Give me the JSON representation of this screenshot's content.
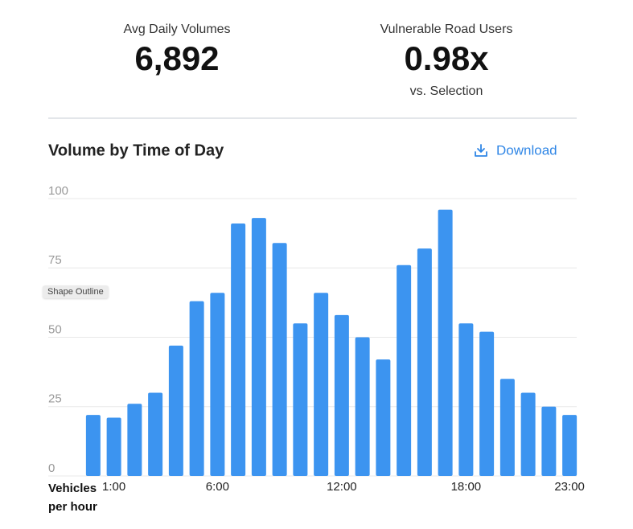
{
  "stats": [
    {
      "label": "Avg Daily Volumes",
      "value": "6,892"
    },
    {
      "label": "Vulnerable Road Users",
      "value": "0.98x",
      "sub": "vs. Selection"
    }
  ],
  "tooltip": "Shape Outline",
  "chart_data": {
    "type": "bar",
    "title": "Volume by Time of Day",
    "action": "Download",
    "x_label": "Vehicles per hour",
    "categories": [
      null,
      "1:00",
      null,
      null,
      null,
      null,
      "6:00",
      null,
      null,
      null,
      null,
      null,
      "12:00",
      null,
      null,
      null,
      null,
      null,
      "18:00",
      null,
      null,
      null,
      null,
      "23:00"
    ],
    "values": [
      22,
      21,
      26,
      30,
      47,
      63,
      66,
      91,
      93,
      84,
      55,
      66,
      58,
      50,
      42,
      76,
      82,
      96,
      55,
      52,
      35,
      30,
      25,
      22
    ],
    "color": "#3c94f0",
    "ylim": [
      0,
      100
    ],
    "yticks": [
      0,
      25,
      50,
      75,
      100
    ],
    "grid": true
  }
}
